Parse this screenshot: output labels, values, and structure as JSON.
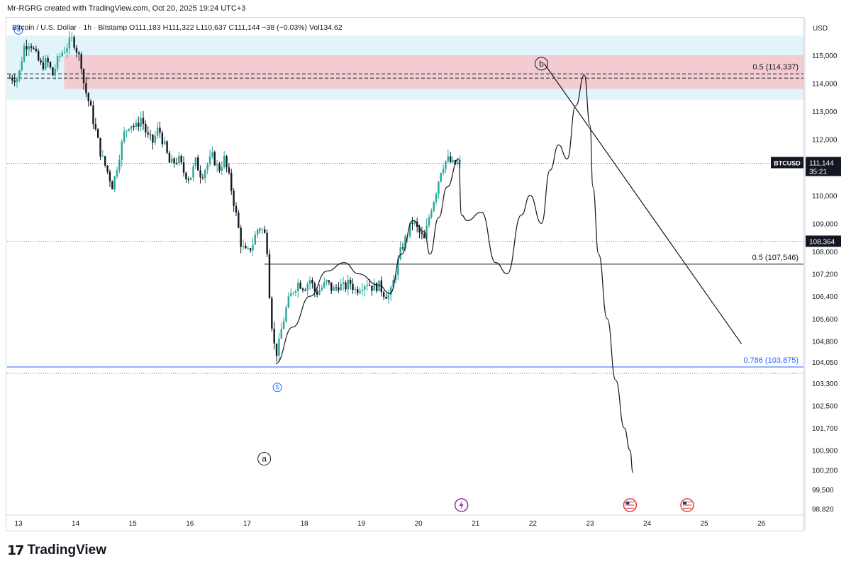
{
  "header": {
    "created_by": "Mr-RGRG created with TradingView.com, Oct 20, 2025 19:24 UTC+3"
  },
  "symbol_line": {
    "name": "Bitcoin / U.S. Dollar · 1h · Bitstamp",
    "open": "O111,183",
    "high": "H111,322",
    "low": "L110,637",
    "close": "C111,144",
    "change": "−38 (−0.03%)",
    "volume": "Vol134.62"
  },
  "currency_label": "USD",
  "branding": "TradingView",
  "colors": {
    "up": "#26a69a",
    "down": "#131722",
    "zone_blue": "#e0f4fa",
    "zone_red": "#f2ccd1",
    "fib_blue": "#2962ff",
    "price_label_bg": "#131722"
  },
  "chart_data": {
    "type": "candlestick",
    "symbol": "BTCUSD",
    "timeframe": "1h",
    "ylim": [
      98820,
      115800
    ],
    "y_ticks": [
      115000,
      114000,
      113000,
      112000,
      110000,
      109000,
      108000,
      107200,
      106400,
      105600,
      104800,
      104050,
      103300,
      102500,
      101700,
      100900,
      100200,
      99500,
      98820
    ],
    "y_tick_labels": [
      "115,000",
      "114,000",
      "113,000",
      "112,000",
      "110,000",
      "109,000",
      "108,000",
      "107,200",
      "106,400",
      "105,600",
      "104,800",
      "104,050",
      "103,300",
      "102,500",
      "101,700",
      "100,900",
      "100,200",
      "99,500",
      "98,820"
    ],
    "x_ticks": [
      "13",
      "14",
      "15",
      "16",
      "17",
      "18",
      "19",
      "20",
      "21",
      "22",
      "23",
      "24",
      "25",
      "26"
    ],
    "price_path": [
      [
        13.0,
        114200
      ],
      [
        13.05,
        114800
      ],
      [
        13.1,
        115300
      ],
      [
        13.2,
        115500
      ],
      [
        13.3,
        115000
      ],
      [
        13.4,
        114600
      ],
      [
        13.5,
        114800
      ],
      [
        13.6,
        114300
      ],
      [
        13.7,
        114900
      ],
      [
        13.8,
        115200
      ],
      [
        13.95,
        115600
      ],
      [
        14.0,
        115300
      ],
      [
        14.1,
        114700
      ],
      [
        14.15,
        113900
      ],
      [
        14.25,
        113200
      ],
      [
        14.35,
        112300
      ],
      [
        14.45,
        111400
      ],
      [
        14.55,
        110900
      ],
      [
        14.65,
        110300
      ],
      [
        14.75,
        111300
      ],
      [
        14.85,
        112200
      ],
      [
        14.95,
        112600
      ],
      [
        15.05,
        112400
      ],
      [
        15.15,
        112800
      ],
      [
        15.25,
        112100
      ],
      [
        15.35,
        111900
      ],
      [
        15.45,
        112400
      ],
      [
        15.55,
        111800
      ],
      [
        15.65,
        111100
      ],
      [
        15.8,
        111300
      ],
      [
        15.9,
        110800
      ],
      [
        16.0,
        110600
      ],
      [
        16.1,
        111200
      ],
      [
        16.2,
        110700
      ],
      [
        16.3,
        111100
      ],
      [
        16.4,
        111400
      ],
      [
        16.5,
        110900
      ],
      [
        16.6,
        111300
      ],
      [
        16.7,
        110500
      ],
      [
        16.8,
        109400
      ],
      [
        16.9,
        108200
      ],
      [
        17.0,
        107900
      ],
      [
        17.1,
        108300
      ],
      [
        17.2,
        108900
      ],
      [
        17.3,
        108700
      ],
      [
        17.35,
        108100
      ],
      [
        17.4,
        106200
      ],
      [
        17.45,
        105000
      ],
      [
        17.5,
        104300
      ],
      [
        17.55,
        104600
      ],
      [
        17.6,
        105200
      ],
      [
        17.7,
        106100
      ],
      [
        17.8,
        106600
      ],
      [
        17.9,
        106900
      ],
      [
        18.0,
        106700
      ],
      [
        18.1,
        107000
      ],
      [
        18.2,
        106500
      ],
      [
        18.3,
        106700
      ],
      [
        18.4,
        106900
      ],
      [
        18.5,
        106600
      ],
      [
        18.6,
        106800
      ],
      [
        18.7,
        106700
      ],
      [
        18.8,
        106900
      ],
      [
        18.9,
        106600
      ],
      [
        19.0,
        106800
      ],
      [
        19.1,
        106900
      ],
      [
        19.2,
        106700
      ],
      [
        19.3,
        106800
      ],
      [
        19.4,
        106500
      ],
      [
        19.5,
        106400
      ],
      [
        19.6,
        107300
      ],
      [
        19.7,
        108100
      ],
      [
        19.8,
        108600
      ],
      [
        19.9,
        109100
      ],
      [
        20.0,
        108700
      ],
      [
        20.1,
        108400
      ],
      [
        20.2,
        109400
      ],
      [
        20.3,
        110100
      ],
      [
        20.4,
        111000
      ],
      [
        20.5,
        111300
      ],
      [
        20.6,
        111100
      ],
      [
        20.7,
        111144
      ]
    ],
    "projection_path": [
      [
        17.5,
        104000
      ],
      [
        17.8,
        105300
      ],
      [
        18.1,
        106400
      ],
      [
        18.4,
        107300
      ],
      [
        18.7,
        107600
      ],
      [
        18.95,
        107200
      ],
      [
        19.3,
        106800
      ],
      [
        19.5,
        106500
      ],
      [
        19.7,
        107900
      ],
      [
        19.9,
        109100
      ],
      [
        20.1,
        108700
      ],
      [
        20.2,
        107900
      ],
      [
        20.35,
        109200
      ],
      [
        20.5,
        110300
      ],
      [
        20.7,
        111300
      ],
      [
        20.75,
        109300
      ],
      [
        20.85,
        109100
      ],
      [
        21.1,
        109400
      ],
      [
        21.35,
        107600
      ],
      [
        21.55,
        107200
      ],
      [
        21.8,
        109300
      ],
      [
        21.95,
        110000
      ],
      [
        22.15,
        109000
      ],
      [
        22.3,
        110900
      ],
      [
        22.45,
        111800
      ],
      [
        22.6,
        111300
      ],
      [
        22.75,
        113200
      ],
      [
        22.9,
        114300
      ],
      [
        23.0,
        112500
      ],
      [
        23.05,
        110300
      ],
      [
        23.15,
        107900
      ],
      [
        23.3,
        105600
      ],
      [
        23.45,
        103400
      ],
      [
        23.6,
        101700
      ],
      [
        23.7,
        100900
      ],
      [
        23.75,
        100100
      ]
    ],
    "trend_line": [
      [
        22.2,
        114700
      ],
      [
        25.65,
        104700
      ]
    ],
    "zones": [
      {
        "name": "supply-zone-blue",
        "x_from": 13.0,
        "x_to": 26.6,
        "y_from": 113400,
        "y_to": 115700,
        "color": "#e0f4fa"
      },
      {
        "name": "supply-zone-red",
        "x_from": 14.0,
        "x_to": 26.6,
        "y_from": 113800,
        "y_to": 115000,
        "color": "#f2ccd1"
      }
    ],
    "levels": [
      {
        "name": "fib-0-5-upper",
        "value": 114337,
        "label": "0.5 (114,337)",
        "style": "dashed",
        "x_from": 13.0
      },
      {
        "name": "fib-0-5-lower",
        "value": 107546,
        "label": "0.5 (107,546)",
        "style": "solid",
        "x_from": 17.5
      },
      {
        "name": "fib-0-786",
        "value": 103875,
        "label": "0.786 (103,875)",
        "style": "solid-blue",
        "x_from": 13.0
      },
      {
        "name": "dotted-current",
        "value": 111144,
        "label": "",
        "style": "dotted",
        "x_from": 13.0
      },
      {
        "name": "dotted-108364",
        "value": 108364,
        "label": "",
        "style": "dotted",
        "x_from": 13.0
      },
      {
        "name": "dotted-103650",
        "value": 103650,
        "label": "",
        "style": "dotted",
        "x_from": 13.0
      }
    ],
    "price_labels": [
      {
        "name": "current-price-label",
        "symbol": "BTCUSD",
        "price": "111,144",
        "countdown": "35:21",
        "value": 111144
      },
      {
        "name": "level-price-label",
        "price": "108,364",
        "value": 108364
      }
    ],
    "wave_labels": [
      {
        "label": "4",
        "x": 13.0,
        "y": 115900,
        "color": "#2962ff"
      },
      {
        "label": "5",
        "x": 17.53,
        "y": 103150,
        "color": "#2962ff"
      },
      {
        "label": "a",
        "x": 17.3,
        "y": 100600,
        "color": "#131722"
      },
      {
        "label": "b",
        "x": 22.15,
        "y": 114700,
        "color": "#131722"
      }
    ],
    "event_markers": [
      {
        "name": "crypto-event-icon",
        "x": 20.75
      },
      {
        "name": "us-flag-event-icon",
        "x": 23.7
      },
      {
        "name": "us-flag-event-icon",
        "x": 24.7
      }
    ]
  }
}
